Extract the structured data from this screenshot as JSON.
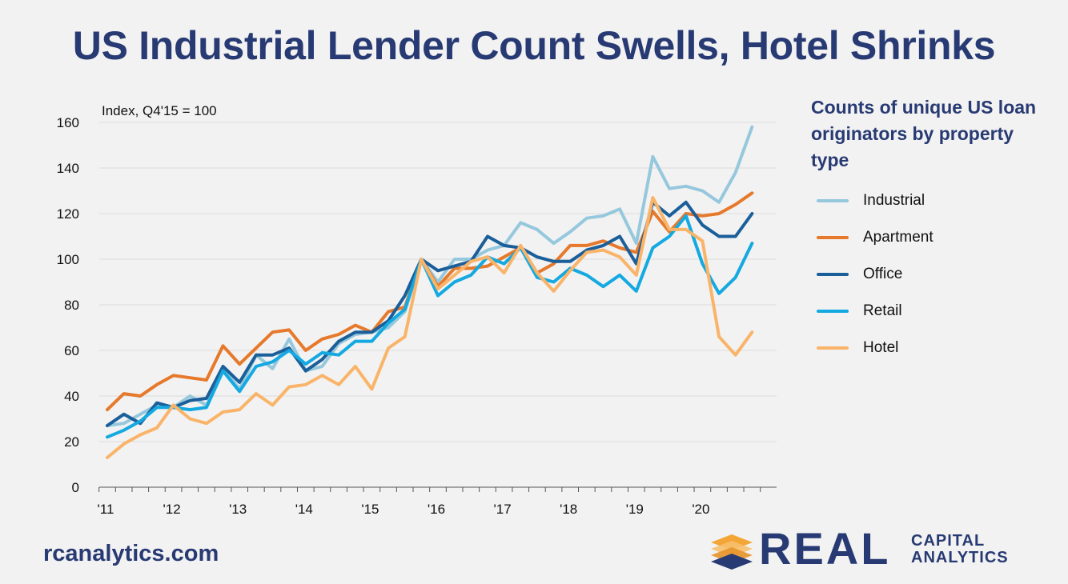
{
  "title": "US Industrial Lender Count Swells, Hotel Shrinks",
  "footer": {
    "url": "rcanalytics.com"
  },
  "logo": {
    "word": "REAL",
    "line1": "CAPITAL",
    "line2": "ANALYTICS"
  },
  "chart_data": {
    "type": "line",
    "title": "US Industrial Lender Count Swells, Hotel Shrinks",
    "index_note": "Index, Q4'15 = 100",
    "legend_title": "Counts of unique US loan originators by property type",
    "legend_position": "right",
    "grid": true,
    "ylim": [
      0,
      160
    ],
    "yticks": [
      0,
      20,
      40,
      60,
      80,
      100,
      120,
      140,
      160
    ],
    "xlim": [
      0,
      40
    ],
    "xticks": [
      {
        "label": "'11",
        "pos": 0
      },
      {
        "label": "'12",
        "pos": 4
      },
      {
        "label": "'13",
        "pos": 8
      },
      {
        "label": "'14",
        "pos": 12
      },
      {
        "label": "'15",
        "pos": 16
      },
      {
        "label": "'16",
        "pos": 20
      },
      {
        "label": "'17",
        "pos": 24
      },
      {
        "label": "'18",
        "pos": 28
      },
      {
        "label": "'19",
        "pos": 32
      },
      {
        "label": "'20",
        "pos": 36
      }
    ],
    "x": [
      "Q1'11",
      "Q2'11",
      "Q3'11",
      "Q4'11",
      "Q1'12",
      "Q2'12",
      "Q3'12",
      "Q4'12",
      "Q1'13",
      "Q2'13",
      "Q3'13",
      "Q4'13",
      "Q1'14",
      "Q2'14",
      "Q3'14",
      "Q4'14",
      "Q1'15",
      "Q2'15",
      "Q3'15",
      "Q4'15",
      "Q1'16",
      "Q2'16",
      "Q3'16",
      "Q4'16",
      "Q1'17",
      "Q2'17",
      "Q3'17",
      "Q4'17",
      "Q1'18",
      "Q2'18",
      "Q3'18",
      "Q4'18",
      "Q1'19",
      "Q2'19",
      "Q3'19",
      "Q4'19",
      "Q1'20",
      "Q2'20",
      "Q3'20",
      "Q4'20"
    ],
    "series": [
      {
        "name": "Industrial",
        "color": "#96c8dd",
        "values": [
          27,
          28,
          32,
          36,
          35,
          40,
          36,
          52,
          43,
          58,
          52,
          65,
          51,
          53,
          63,
          67,
          68,
          70,
          77,
          100,
          90,
          100,
          100,
          104,
          106,
          116,
          113,
          107,
          112,
          118,
          119,
          122,
          107,
          145,
          131,
          132,
          130,
          125,
          138,
          158
        ]
      },
      {
        "name": "Apartment",
        "color": "#e6792b",
        "values": [
          34,
          41,
          40,
          45,
          49,
          48,
          47,
          62,
          54,
          61,
          68,
          69,
          60,
          65,
          67,
          71,
          68,
          77,
          79,
          100,
          88,
          96,
          96,
          97,
          101,
          105,
          94,
          98,
          106,
          106,
          108,
          105,
          103,
          121,
          112,
          120,
          119,
          120,
          124,
          129
        ]
      },
      {
        "name": "Office",
        "color": "#1b5f9a",
        "values": [
          27,
          32,
          28,
          37,
          35,
          38,
          39,
          53,
          46,
          58,
          58,
          61,
          51,
          56,
          64,
          68,
          68,
          73,
          84,
          100,
          95,
          97,
          99,
          110,
          106,
          105,
          101,
          99,
          99,
          104,
          106,
          110,
          98,
          125,
          119,
          125,
          115,
          110,
          110,
          120
        ]
      },
      {
        "name": "Retail",
        "color": "#14a9e1",
        "values": [
          22,
          25,
          29,
          35,
          35,
          34,
          35,
          51,
          42,
          53,
          55,
          60,
          54,
          59,
          58,
          64,
          64,
          72,
          78,
          100,
          84,
          90,
          93,
          101,
          98,
          105,
          92,
          90,
          96,
          93,
          88,
          93,
          86,
          105,
          110,
          119,
          98,
          85,
          92,
          107
        ]
      },
      {
        "name": "Hotel",
        "color": "#f9b46a",
        "values": [
          13,
          19,
          23,
          26,
          36,
          30,
          28,
          33,
          34,
          41,
          36,
          44,
          45,
          49,
          45,
          53,
          43,
          61,
          66,
          100,
          87,
          93,
          99,
          101,
          94,
          106,
          94,
          86,
          95,
          103,
          104,
          101,
          93,
          127,
          113,
          113,
          108,
          66,
          58,
          68
        ]
      }
    ]
  }
}
